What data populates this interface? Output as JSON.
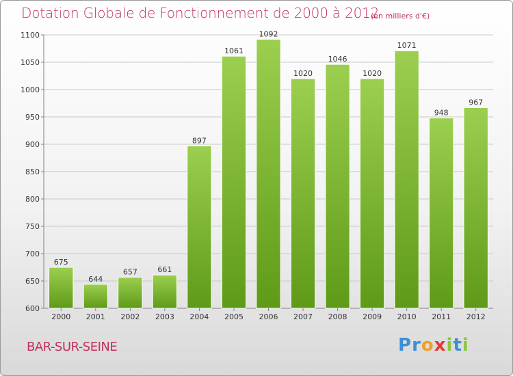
{
  "title": "Dotation Globale de Fonctionnement de 2000 à 2012",
  "subtitle": "(en milliers d'€)",
  "commune": "BAR-SUR-SEINE",
  "logo": {
    "text": "Proxiti",
    "letters": [
      {
        "char": "P",
        "color": "#3d8fd6"
      },
      {
        "char": "r",
        "color": "#3d8fd6"
      },
      {
        "char": "o",
        "color": "#f0a020"
      },
      {
        "char": "x",
        "color": "#e03a3a"
      },
      {
        "char": "i",
        "color": "#8cc63f"
      },
      {
        "char": "t",
        "color": "#3d8fd6"
      },
      {
        "char": "i",
        "color": "#8cc63f"
      }
    ]
  },
  "colors": {
    "title": "#c2305a",
    "bar_top": "#9ccf4f",
    "bar_bottom": "#5e9a18",
    "grid": "#c8c8c8",
    "axis": "#808080"
  },
  "chart_data": {
    "type": "bar",
    "title": "Dotation Globale de Fonctionnement de 2000 à 2012",
    "subtitle": "(en milliers d'€)",
    "categories": [
      "2000",
      "2001",
      "2002",
      "2003",
      "2004",
      "2005",
      "2006",
      "2007",
      "2008",
      "2009",
      "2010",
      "2011",
      "2012"
    ],
    "values": [
      675,
      644,
      657,
      661,
      897,
      1061,
      1092,
      1020,
      1046,
      1020,
      1071,
      948,
      967
    ],
    "ylim": [
      600,
      1100
    ],
    "yticks": [
      600,
      650,
      700,
      750,
      800,
      850,
      900,
      950,
      1000,
      1050,
      1100
    ],
    "grid": true,
    "legend": "none"
  }
}
